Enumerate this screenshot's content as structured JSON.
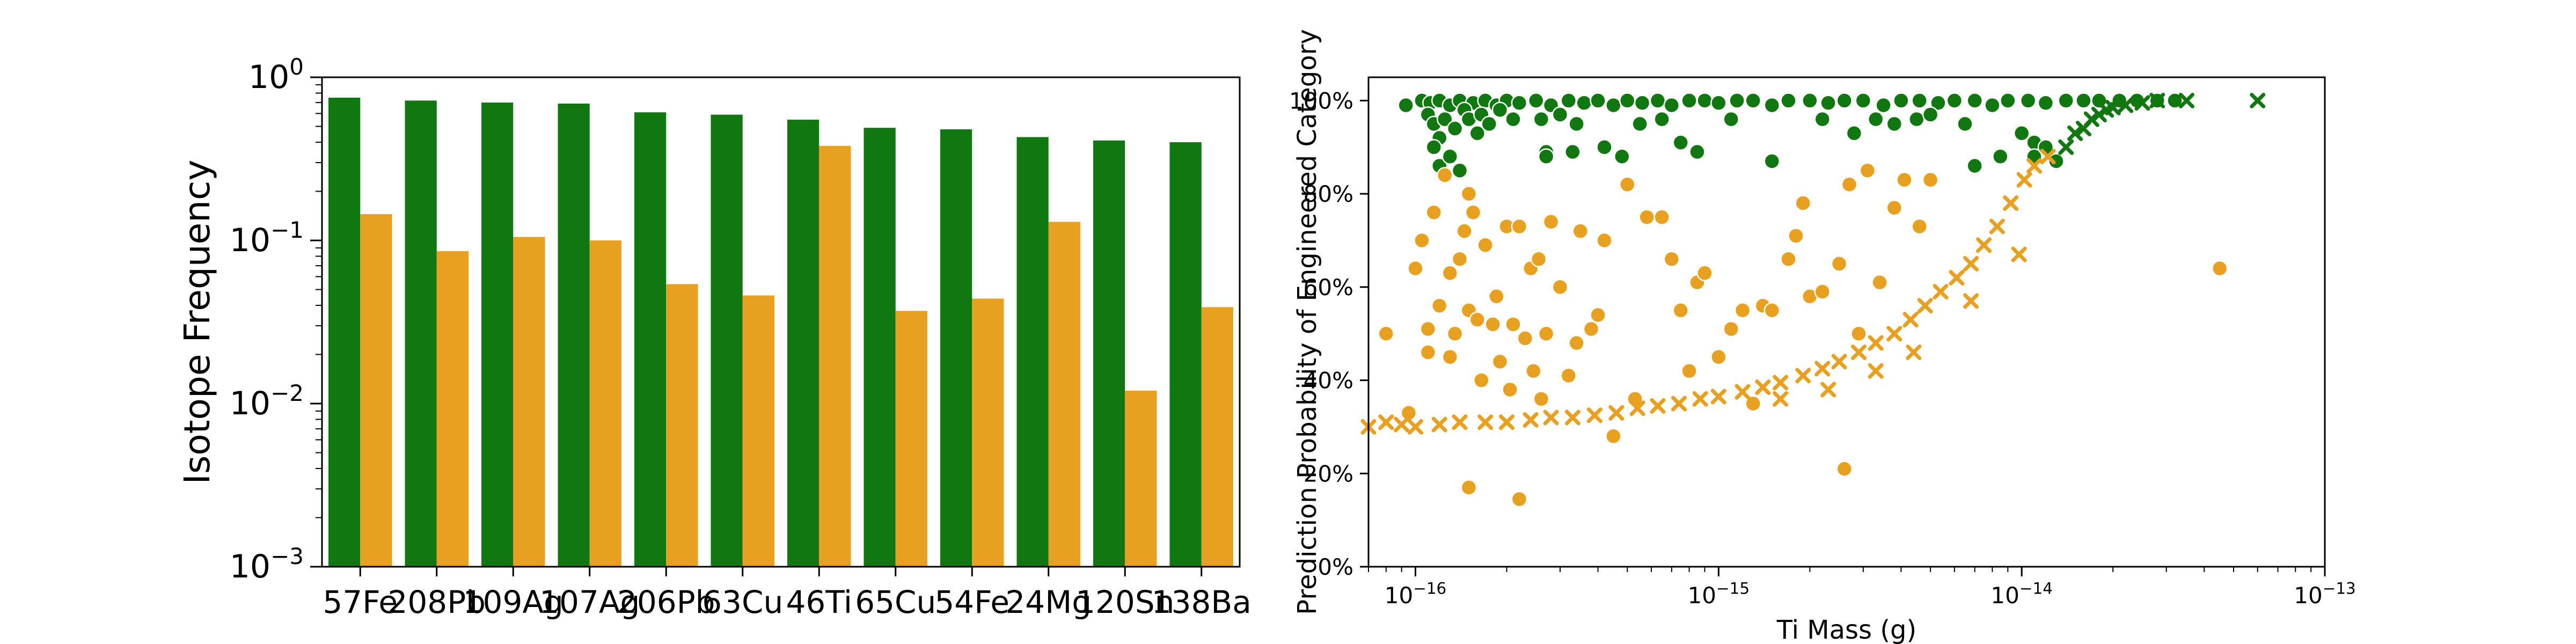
{
  "colors": {
    "green": "#117711",
    "orange": "#e8a021",
    "frame": "#000000"
  },
  "chart_data": [
    {
      "type": "bar",
      "yscale": "log",
      "ylim": [
        0.001,
        1
      ],
      "ylabel": "Isotope Frequency",
      "xlabel": "",
      "yticks": [
        {
          "value": 0.001,
          "base": "10",
          "exp": "−3"
        },
        {
          "value": 0.01,
          "base": "10",
          "exp": "−2"
        },
        {
          "value": 0.1,
          "base": "10",
          "exp": "−1"
        },
        {
          "value": 1,
          "base": "10",
          "exp": "0"
        }
      ],
      "categories": [
        "57Fe",
        "208Pb",
        "109Ag",
        "107Ag",
        "206Pb",
        "63Cu",
        "46Ti",
        "65Cu",
        "54Fe",
        "24Mg",
        "120Sn",
        "138Ba"
      ],
      "series": [
        {
          "color": "#117711",
          "values": [
            0.75,
            0.72,
            0.7,
            0.69,
            0.61,
            0.59,
            0.55,
            0.49,
            0.48,
            0.43,
            0.41,
            0.4
          ]
        },
        {
          "color": "#e8a021",
          "values": [
            0.145,
            0.086,
            0.105,
            0.1,
            0.054,
            0.046,
            0.38,
            0.037,
            0.044,
            0.13,
            0.012,
            0.039
          ]
        }
      ]
    },
    {
      "type": "scatter",
      "xscale": "log",
      "xlim": [
        7e-17,
        1e-13
      ],
      "ylim": [
        0,
        1.05
      ],
      "xlabel": "Ti Mass (g)",
      "ylabel": "Prediction Probability of Engineered Category",
      "xticks": [
        {
          "value": 1e-16,
          "base": "10",
          "exp": "−16"
        },
        {
          "value": 1e-15,
          "base": "10",
          "exp": "−15"
        },
        {
          "value": 1e-14,
          "base": "10",
          "exp": "−14"
        },
        {
          "value": 1e-13,
          "base": "10",
          "exp": "−13"
        }
      ],
      "yticks": [
        {
          "value": 0,
          "label": "0%"
        },
        {
          "value": 0.2,
          "label": "20%"
        },
        {
          "value": 0.4,
          "label": "40%"
        },
        {
          "value": 0.6,
          "label": "60%"
        },
        {
          "value": 0.8,
          "label": "80%"
        },
        {
          "value": 1.0,
          "label": "100%"
        }
      ],
      "series": [
        {
          "marker": "circle",
          "color": "#117711",
          "points": [
            [
              9.3e-17,
              0.99
            ],
            [
              1.05e-16,
              1.0
            ],
            [
              1.12e-16,
              0.995
            ],
            [
              1.2e-16,
              1.0
            ],
            [
              1.3e-16,
              0.99
            ],
            [
              1.4e-16,
              1.0
            ],
            [
              1.55e-16,
              0.995
            ],
            [
              1.7e-16,
              1.0
            ],
            [
              1.85e-16,
              0.99
            ],
            [
              2e-16,
              1.0
            ],
            [
              2.2e-16,
              0.995
            ],
            [
              2.5e-16,
              1.0
            ],
            [
              2.8e-16,
              0.99
            ],
            [
              3.2e-16,
              1.0
            ],
            [
              3.6e-16,
              0.995
            ],
            [
              4e-16,
              1.0
            ],
            [
              4.5e-16,
              0.99
            ],
            [
              5e-16,
              1.0
            ],
            [
              5.6e-16,
              0.995
            ],
            [
              6.3e-16,
              1.0
            ],
            [
              7e-16,
              0.99
            ],
            [
              8e-16,
              1.0
            ],
            [
              9e-16,
              1.0
            ],
            [
              1e-15,
              0.995
            ],
            [
              1.15e-15,
              1.0
            ],
            [
              1.3e-15,
              1.0
            ],
            [
              1.5e-15,
              0.99
            ],
            [
              1.7e-15,
              1.0
            ],
            [
              2e-15,
              1.0
            ],
            [
              2.3e-15,
              0.995
            ],
            [
              2.6e-15,
              1.0
            ],
            [
              3e-15,
              1.0
            ],
            [
              3.5e-15,
              0.99
            ],
            [
              4e-15,
              1.0
            ],
            [
              4.6e-15,
              1.0
            ],
            [
              5.3e-15,
              0.995
            ],
            [
              6e-15,
              1.0
            ],
            [
              7e-15,
              1.0
            ],
            [
              8e-15,
              0.99
            ],
            [
              9e-15,
              1.0
            ],
            [
              1.05e-14,
              1.0
            ],
            [
              1.2e-14,
              0.995
            ],
            [
              1.4e-14,
              1.0
            ],
            [
              1.6e-14,
              1.0
            ],
            [
              1.8e-14,
              1.0
            ],
            [
              2.1e-14,
              1.0
            ],
            [
              2.4e-14,
              1.0
            ],
            [
              2.8e-14,
              1.0
            ],
            [
              3.2e-14,
              1.0
            ],
            [
              1.1e-16,
              0.97
            ],
            [
              1.15e-16,
              0.95
            ],
            [
              1.2e-16,
              0.92
            ],
            [
              1.25e-16,
              0.96
            ],
            [
              1.35e-16,
              0.94
            ],
            [
              1.45e-16,
              0.98
            ],
            [
              1.5e-16,
              0.96
            ],
            [
              1.6e-16,
              0.93
            ],
            [
              1.65e-16,
              0.97
            ],
            [
              1.75e-16,
              0.95
            ],
            [
              1.9e-16,
              0.98
            ],
            [
              2.1e-16,
              0.96
            ],
            [
              1.15e-16,
              0.9
            ],
            [
              1.2e-16,
              0.86
            ],
            [
              1.3e-16,
              0.88
            ],
            [
              1.4e-16,
              0.85
            ],
            [
              2.6e-16,
              0.96
            ],
            [
              3e-16,
              0.97
            ],
            [
              3.4e-16,
              0.95
            ],
            [
              2.7e-16,
              0.89
            ],
            [
              2.7e-16,
              0.88
            ],
            [
              3.3e-16,
              0.89
            ],
            [
              4.2e-16,
              0.9
            ],
            [
              4.8e-16,
              0.88
            ],
            [
              5.5e-16,
              0.95
            ],
            [
              6.5e-16,
              0.96
            ],
            [
              7.5e-16,
              0.91
            ],
            [
              8.5e-16,
              0.89
            ],
            [
              1.1e-15,
              0.96
            ],
            [
              1.5e-15,
              0.87
            ],
            [
              2.2e-15,
              0.96
            ],
            [
              2.8e-15,
              0.93
            ],
            [
              3.3e-15,
              0.96
            ],
            [
              3.8e-15,
              0.95
            ],
            [
              4.5e-15,
              0.96
            ],
            [
              5e-15,
              0.97
            ],
            [
              6.5e-15,
              0.95
            ],
            [
              7e-15,
              0.86
            ],
            [
              8.5e-15,
              0.88
            ],
            [
              1e-14,
              0.93
            ],
            [
              1.1e-14,
              0.91
            ],
            [
              1.1e-14,
              0.88
            ],
            [
              1.2e-14,
              0.9
            ],
            [
              1.3e-14,
              0.87
            ]
          ]
        },
        {
          "marker": "cross",
          "color": "#117711",
          "points": [
            [
              1.4e-14,
              0.9
            ],
            [
              1.5e-14,
              0.93
            ],
            [
              1.6e-14,
              0.94
            ],
            [
              1.7e-14,
              0.96
            ],
            [
              1.8e-14,
              0.97
            ],
            [
              1.9e-14,
              0.98
            ],
            [
              2e-14,
              0.985
            ],
            [
              2.2e-14,
              0.99
            ],
            [
              2.5e-14,
              0.995
            ],
            [
              2.8e-14,
              1.0
            ],
            [
              3.5e-14,
              1.0
            ],
            [
              6e-14,
              1.0
            ]
          ]
        },
        {
          "marker": "circle",
          "color": "#e8a021",
          "points": [
            [
              8e-17,
              0.5
            ],
            [
              9.5e-17,
              0.33
            ],
            [
              1e-16,
              0.64
            ],
            [
              1.05e-16,
              0.7
            ],
            [
              1.1e-16,
              0.51
            ],
            [
              1.1e-16,
              0.46
            ],
            [
              1.15e-16,
              0.76
            ],
            [
              1.2e-16,
              0.56
            ],
            [
              1.25e-16,
              0.84
            ],
            [
              1.3e-16,
              0.45
            ],
            [
              1.3e-16,
              0.63
            ],
            [
              1.35e-16,
              0.5
            ],
            [
              1.4e-16,
              0.66
            ],
            [
              1.45e-16,
              0.72
            ],
            [
              1.5e-16,
              0.8
            ],
            [
              1.5e-16,
              0.55
            ],
            [
              1.55e-16,
              0.76
            ],
            [
              1.6e-16,
              0.53
            ],
            [
              1.65e-16,
              0.4
            ],
            [
              1.7e-16,
              0.69
            ],
            [
              1.8e-16,
              0.52
            ],
            [
              1.85e-16,
              0.58
            ],
            [
              1.9e-16,
              0.44
            ],
            [
              2e-16,
              0.73
            ],
            [
              2.05e-16,
              0.38
            ],
            [
              2.1e-16,
              0.52
            ],
            [
              2.2e-16,
              0.73
            ],
            [
              2.3e-16,
              0.49
            ],
            [
              2.4e-16,
              0.64
            ],
            [
              2.45e-16,
              0.42
            ],
            [
              2.55e-16,
              0.66
            ],
            [
              2.6e-16,
              0.36
            ],
            [
              2.7e-16,
              0.5
            ],
            [
              2.8e-16,
              0.74
            ],
            [
              3e-16,
              0.6
            ],
            [
              3.2e-16,
              0.41
            ],
            [
              3.4e-16,
              0.48
            ],
            [
              3.5e-16,
              0.72
            ],
            [
              3.8e-16,
              0.51
            ],
            [
              4e-16,
              0.54
            ],
            [
              4.2e-16,
              0.7
            ],
            [
              4.5e-16,
              0.28
            ],
            [
              5e-16,
              0.82
            ],
            [
              5.3e-16,
              0.36
            ],
            [
              5.8e-16,
              0.75
            ],
            [
              6.5e-16,
              0.75
            ],
            [
              7e-16,
              0.66
            ],
            [
              7.5e-16,
              0.55
            ],
            [
              8e-16,
              0.42
            ],
            [
              8.5e-16,
              0.61
            ],
            [
              9e-16,
              0.63
            ],
            [
              1e-15,
              0.45
            ],
            [
              1.1e-15,
              0.51
            ],
            [
              1.2e-15,
              0.55
            ],
            [
              1.3e-15,
              0.35
            ],
            [
              1.4e-15,
              0.56
            ],
            [
              1.5e-15,
              0.55
            ],
            [
              1.7e-15,
              0.66
            ],
            [
              1.8e-15,
              0.71
            ],
            [
              1.9e-15,
              0.78
            ],
            [
              2e-15,
              0.58
            ],
            [
              2.2e-15,
              0.59
            ],
            [
              2.5e-15,
              0.65
            ],
            [
              2.7e-15,
              0.82
            ],
            [
              2.9e-15,
              0.5
            ],
            [
              3.1e-15,
              0.85
            ],
            [
              3.4e-15,
              0.61
            ],
            [
              3.8e-15,
              0.77
            ],
            [
              4.1e-15,
              0.83
            ],
            [
              4.6e-15,
              0.73
            ],
            [
              5e-15,
              0.83
            ],
            [
              1.5e-16,
              0.17
            ],
            [
              2.2e-16,
              0.145
            ],
            [
              2.6e-15,
              0.21
            ],
            [
              4.5e-14,
              0.64
            ]
          ]
        },
        {
          "marker": "cross",
          "color": "#e8a021",
          "points": [
            [
              7e-17,
              0.3
            ],
            [
              8e-17,
              0.31
            ],
            [
              9e-17,
              0.305
            ],
            [
              1e-16,
              0.3
            ],
            [
              1.2e-16,
              0.305
            ],
            [
              1.4e-16,
              0.31
            ],
            [
              1.7e-16,
              0.31
            ],
            [
              2e-16,
              0.31
            ],
            [
              2.4e-16,
              0.315
            ],
            [
              2.8e-16,
              0.32
            ],
            [
              3.3e-16,
              0.32
            ],
            [
              3.9e-16,
              0.325
            ],
            [
              4.6e-16,
              0.33
            ],
            [
              5.4e-16,
              0.34
            ],
            [
              6.3e-16,
              0.345
            ],
            [
              7.4e-16,
              0.35
            ],
            [
              8.7e-16,
              0.36
            ],
            [
              1e-15,
              0.365
            ],
            [
              1.2e-15,
              0.375
            ],
            [
              1.4e-15,
              0.385
            ],
            [
              1.6e-15,
              0.395
            ],
            [
              1.9e-15,
              0.41
            ],
            [
              2.2e-15,
              0.425
            ],
            [
              2.5e-15,
              0.44
            ],
            [
              2.9e-15,
              0.46
            ],
            [
              3.3e-15,
              0.48
            ],
            [
              3.8e-15,
              0.5
            ],
            [
              4.3e-15,
              0.53
            ],
            [
              4.8e-15,
              0.56
            ],
            [
              5.4e-15,
              0.59
            ],
            [
              6.1e-15,
              0.62
            ],
            [
              6.8e-15,
              0.65
            ],
            [
              7.5e-15,
              0.69
            ],
            [
              8.3e-15,
              0.73
            ],
            [
              9.2e-15,
              0.78
            ],
            [
              1.02e-14,
              0.83
            ],
            [
              1.1e-14,
              0.86
            ],
            [
              3.3e-15,
              0.42
            ],
            [
              4.4e-15,
              0.46
            ],
            [
              6.8e-15,
              0.57
            ],
            [
              9.8e-15,
              0.67
            ],
            [
              1.22e-14,
              0.88
            ],
            [
              2.3e-15,
              0.38
            ],
            [
              1.6e-15,
              0.36
            ]
          ]
        }
      ]
    }
  ]
}
